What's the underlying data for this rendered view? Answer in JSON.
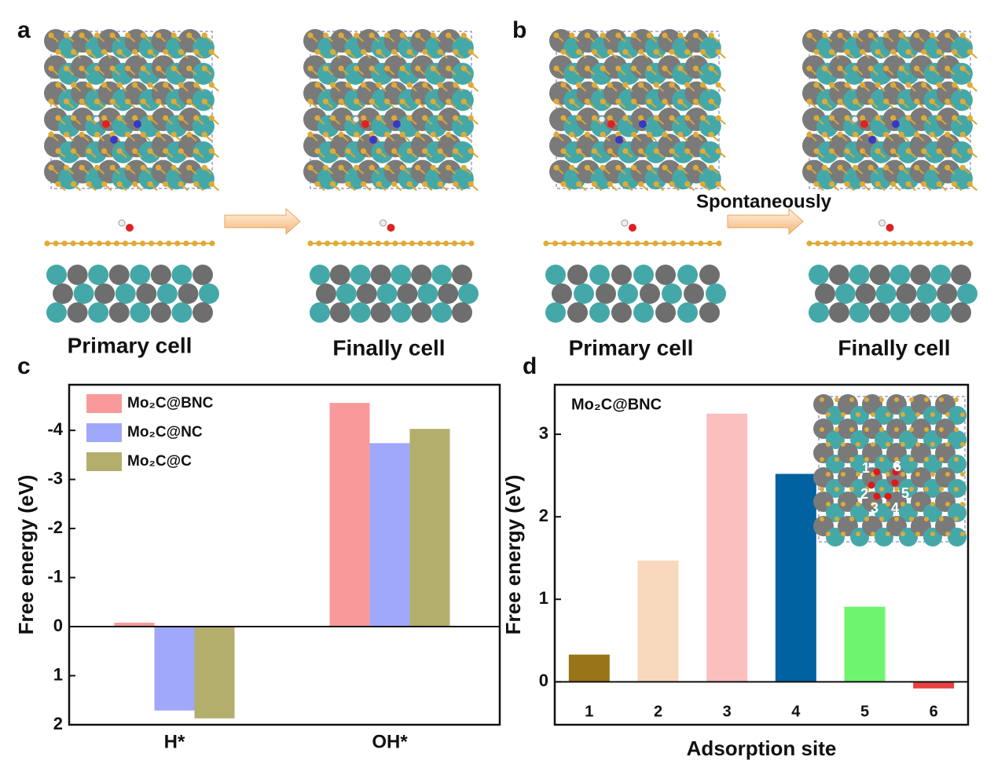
{
  "panels": {
    "a": {
      "label": "a",
      "captions": [
        "Primary cell",
        "Finally cell"
      ]
    },
    "b": {
      "label": "b",
      "captions": [
        "Primary cell",
        "Finally cell"
      ],
      "annotation": "Spontaneously"
    }
  },
  "chart_data": [
    {
      "type": "bar",
      "panel_label": "c",
      "ylabel": "Free energy (eV)",
      "categories": [
        "H*",
        "OH*"
      ],
      "series": [
        {
          "name": "Mo₂C@BNC",
          "color": "#f89a9a",
          "values": [
            -0.08,
            -4.56
          ]
        },
        {
          "name": "Mo₂C@NC",
          "color": "#a0a8fa",
          "values": [
            1.71,
            -3.74
          ]
        },
        {
          "name": "Mo₂C@C",
          "color": "#b3ae6c",
          "values": [
            1.87,
            -4.03
          ]
        }
      ],
      "ylim": [
        -4.93,
        2
      ],
      "y_inverted": true,
      "yticks": [
        -4,
        -3,
        -2,
        -1,
        0,
        1,
        2
      ],
      "grid": false,
      "legend": "upper left"
    },
    {
      "type": "bar",
      "panel_label": "d",
      "ylabel": "Free energy (eV)",
      "xlabel": "Adsorption site",
      "annotation": "Mo₂C@BNC",
      "categories": [
        "1",
        "2",
        "3",
        "4",
        "5",
        "6"
      ],
      "values": [
        0.33,
        1.47,
        3.25,
        2.52,
        0.91,
        -0.08
      ],
      "colors": [
        "#9a7418",
        "#f8d8bc",
        "#fbbfbf",
        "#0062a0",
        "#6ef46e",
        "#e84040"
      ],
      "ylim": [
        -0.52,
        3.6
      ],
      "yticks": [
        0,
        1,
        2,
        3
      ],
      "grid": false,
      "inset_labels": [
        "1",
        "2",
        "3",
        "4",
        "5",
        "6"
      ]
    }
  ]
}
